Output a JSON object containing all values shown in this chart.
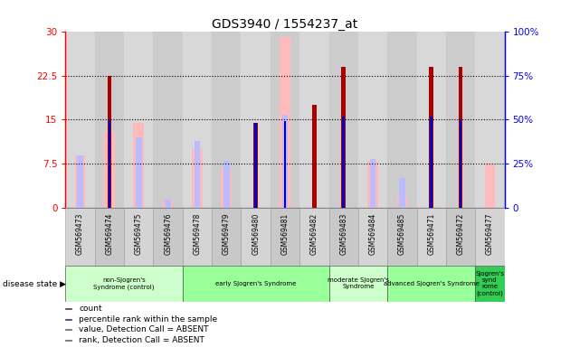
{
  "title": "GDS3940 / 1554237_at",
  "samples": [
    "GSM569473",
    "GSM569474",
    "GSM569475",
    "GSM569476",
    "GSM569478",
    "GSM569479",
    "GSM569480",
    "GSM569481",
    "GSM569482",
    "GSM569483",
    "GSM569484",
    "GSM569485",
    "GSM569471",
    "GSM569472",
    "GSM569477"
  ],
  "count_values": [
    0,
    22.5,
    0,
    0,
    0,
    0,
    14.5,
    0,
    17.5,
    24,
    0,
    0,
    24,
    24,
    0
  ],
  "rank_values_pct": [
    0,
    50,
    0,
    0,
    0,
    0,
    48,
    49,
    0,
    52,
    0,
    0,
    52,
    50,
    0
  ],
  "absent_value": [
    9,
    13,
    14.5,
    1.5,
    10,
    6.5,
    0,
    29,
    0,
    0,
    8,
    2,
    0,
    0,
    7.5
  ],
  "absent_rank_pct": [
    30,
    0,
    40,
    5,
    38,
    27,
    0,
    53,
    0,
    0,
    28,
    17,
    0,
    0,
    0
  ],
  "ylim_left": [
    0,
    30
  ],
  "ylim_right": [
    0,
    100
  ],
  "yticks_left": [
    0,
    7.5,
    15,
    22.5,
    30
  ],
  "ytick_labels_left": [
    "0",
    "7.5",
    "15",
    "22.5",
    "30"
  ],
  "yticks_right": [
    0,
    25,
    50,
    75,
    100
  ],
  "ytick_labels_right": [
    "0",
    "25%",
    "50%",
    "75%",
    "100%"
  ],
  "count_color": "#aa0000",
  "rank_color": "#0000cc",
  "absent_value_color": "#ffbbbb",
  "absent_rank_color": "#bbbbff",
  "col_bg_even": "#d8d8d8",
  "col_bg_odd": "#cccccc",
  "plot_bg": "#cccccc",
  "group_configs": [
    {
      "label": "non-Sjogren's\nSyndrome (control)",
      "indices": [
        0,
        1,
        2,
        3
      ],
      "color": "#ccffcc"
    },
    {
      "label": "early Sjogren's Syndrome",
      "indices": [
        4,
        5,
        6,
        7,
        8
      ],
      "color": "#99ff99"
    },
    {
      "label": "moderate Sjogren's\nSyndrome",
      "indices": [
        9,
        10
      ],
      "color": "#ccffcc"
    },
    {
      "label": "advanced Sjogren's Syndrome",
      "indices": [
        11,
        12,
        13
      ],
      "color": "#99ff99"
    },
    {
      "label": "Sjogren's\nsynd\nrome\n(control)",
      "indices": [
        14
      ],
      "color": "#33cc55"
    }
  ],
  "legend_items": [
    {
      "color": "#aa0000",
      "label": "count"
    },
    {
      "color": "#0000cc",
      "label": "percentile rank within the sample"
    },
    {
      "color": "#ffbbbb",
      "label": "value, Detection Call = ABSENT"
    },
    {
      "color": "#bbbbff",
      "label": "rank, Detection Call = ABSENT"
    }
  ]
}
